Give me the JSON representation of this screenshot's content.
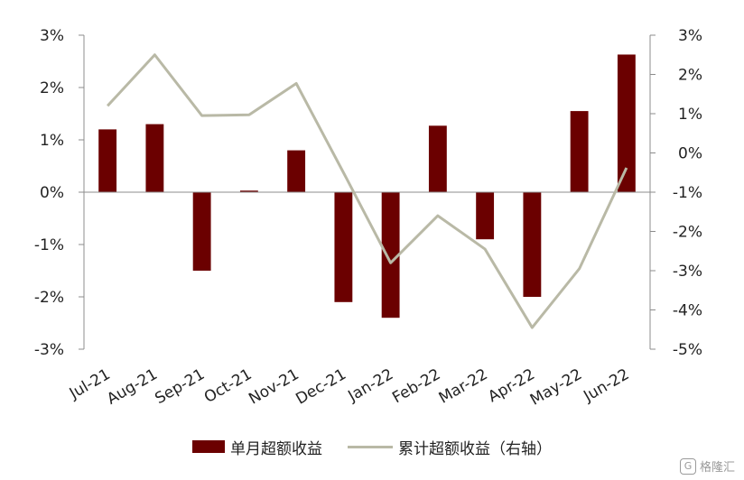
{
  "chart_data": {
    "type": "bar+line",
    "categories": [
      "Jul-21",
      "Aug-21",
      "Sep-21",
      "Oct-21",
      "Nov-21",
      "Dec-21",
      "Jan-22",
      "Feb-22",
      "Mar-22",
      "Apr-22",
      "May-22",
      "Jun-22"
    ],
    "series": [
      {
        "name": "单月超额收益",
        "type": "bar",
        "axis": "left",
        "color": "#6b0000",
        "values": [
          1.2,
          1.3,
          -1.5,
          0.03,
          0.8,
          -2.1,
          -2.4,
          1.27,
          -0.9,
          -2.0,
          1.55,
          2.63
        ]
      },
      {
        "name": "累计超额收益（右轴）",
        "type": "line",
        "axis": "right",
        "color": "#b9b9a6",
        "values": [
          1.2,
          2.5,
          0.95,
          0.97,
          1.77,
          -0.5,
          -2.8,
          -1.6,
          -2.45,
          -4.45,
          -2.95,
          -0.38
        ]
      }
    ],
    "left_axis": {
      "ylim": [
        -3,
        3
      ],
      "ticks": [
        "3%",
        "2%",
        "1%",
        "0%",
        "-1%",
        "-2%",
        "-3%"
      ]
    },
    "right_axis": {
      "ylim": [
        -5,
        3
      ],
      "ticks": [
        "3%",
        "2%",
        "1%",
        "0%",
        "-1%",
        "-2%",
        "-3%",
        "-4%",
        "-5%"
      ]
    },
    "grid": false,
    "legend_position": "bottom"
  },
  "legend": {
    "bar_label": "单月超额收益",
    "line_label": "累计超额收益（右轴）"
  },
  "watermark": {
    "text": "格隆汇",
    "icon_char": "G"
  }
}
